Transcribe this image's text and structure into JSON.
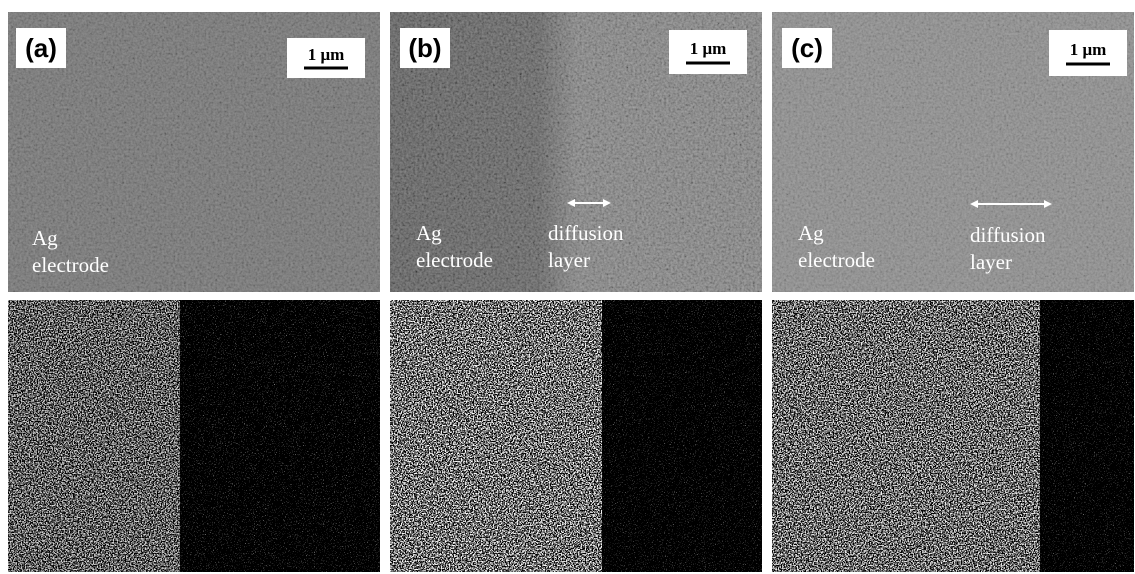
{
  "panels": [
    {
      "label": "(a)",
      "scale_bar": "1 μm",
      "annotations": [
        {
          "lines": [
            "Ag",
            "electrode"
          ]
        }
      ]
    },
    {
      "label": "(b)",
      "scale_bar": "1 μm",
      "annotations": [
        {
          "lines": [
            "Ag",
            "electrode"
          ]
        },
        {
          "lines": [
            "diffusion",
            "layer"
          ]
        }
      ]
    },
    {
      "label": "(c)",
      "scale_bar": "1 μm",
      "annotations": [
        {
          "lines": [
            "Ag",
            "electrode"
          ]
        },
        {
          "lines": [
            "diffusion",
            "layer"
          ]
        }
      ]
    }
  ]
}
